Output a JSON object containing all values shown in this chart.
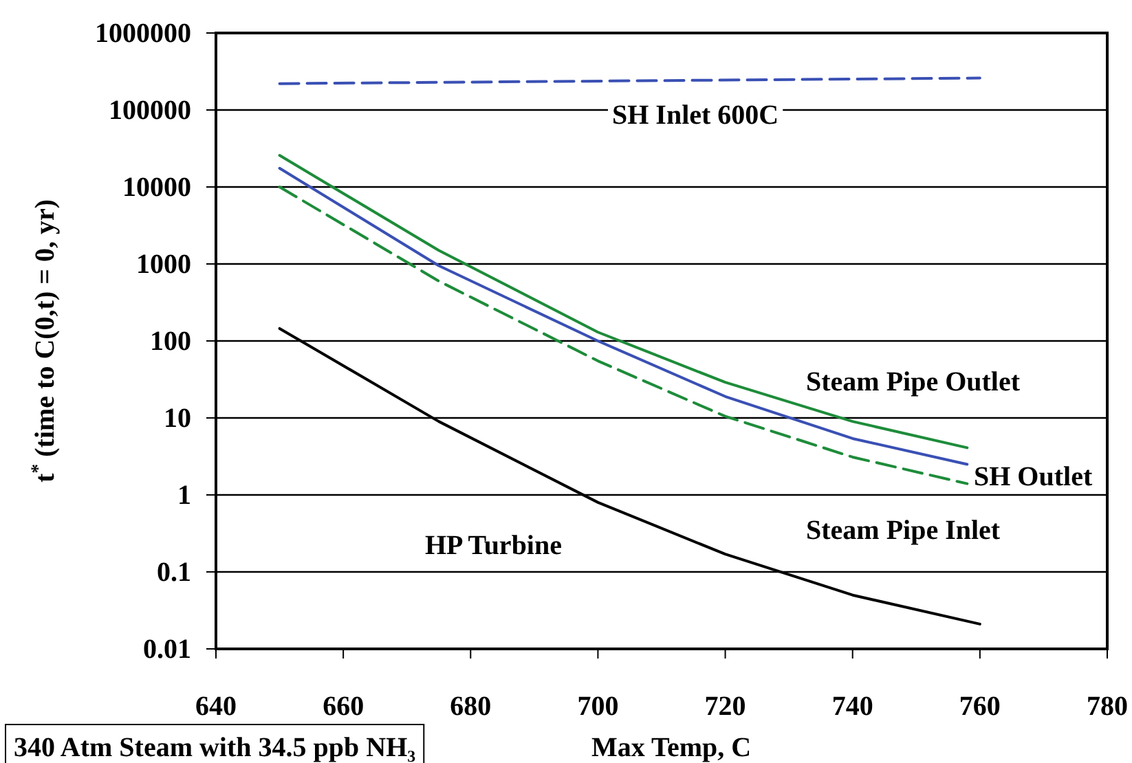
{
  "chart_data": {
    "type": "line",
    "xlabel": "Max Temp, C",
    "ylabel": "t$^{*}$ (time to C(0,t) = 0, yr)",
    "log": "y",
    "grid": "y",
    "marker": "none",
    "xlim": [
      640,
      780
    ],
    "xticks": [
      640,
      660,
      680,
      700,
      720,
      740,
      760,
      780
    ],
    "ylim": [
      0.01,
      1000000
    ],
    "yticks": [
      0.01,
      0.1,
      1,
      10,
      100,
      1000,
      10000,
      100000,
      1000000
    ],
    "series": [
      {
        "name": "SH Inlet 600C",
        "color": "#3a50b4",
        "line_style": "dashed",
        "x": [
          650,
          760
        ],
        "values": [
          220000,
          260000
        ]
      },
      {
        "name": "Steam Pipe Outlet",
        "color": "#1e8c3a",
        "line_style": "solid",
        "x": [
          650,
          675,
          700,
          720,
          740,
          758
        ],
        "values": [
          25700,
          1500,
          130,
          29,
          9,
          4.1
        ]
      },
      {
        "name": "SH Outlet",
        "color": "#3a50b4",
        "line_style": "solid",
        "x": [
          650,
          675,
          700,
          720,
          740,
          758
        ],
        "values": [
          17500,
          950,
          100,
          19,
          5.4,
          2.5
        ]
      },
      {
        "name": "Steam Pipe Inlet",
        "color": "#1e8c3a",
        "line_style": "dashed",
        "x": [
          650,
          675,
          700,
          720,
          740,
          758
        ],
        "values": [
          10000,
          600,
          55,
          10.5,
          3.1,
          1.4
        ]
      },
      {
        "name": "HP Turbine",
        "color": "#000000",
        "line_style": "solid",
        "x": [
          650,
          675,
          700,
          720,
          740,
          760
        ],
        "values": [
          145,
          9,
          0.8,
          0.17,
          0.05,
          0.021
        ]
      }
    ],
    "annotations": [
      "340 Atm Steam with 34.5 ppb NH₃"
    ]
  }
}
